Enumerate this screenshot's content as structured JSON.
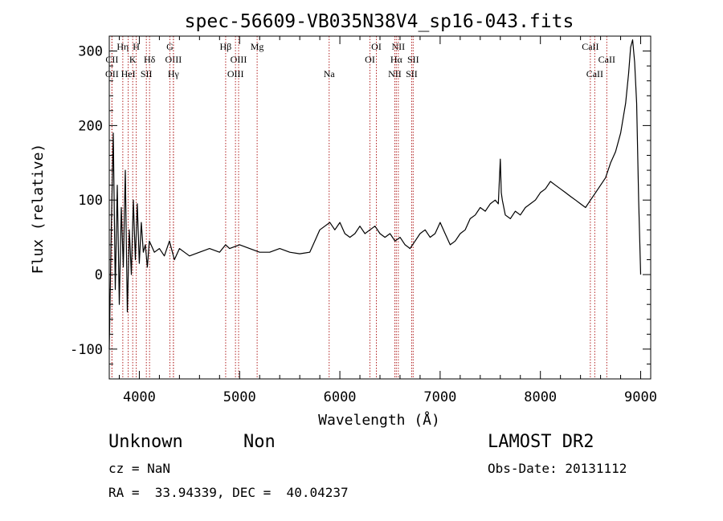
{
  "chart_data": {
    "type": "line",
    "title": "spec-56609-VB035N38V4_sp16-043.fits",
    "xlabel": "Wavelength (Å)",
    "ylabel": "Flux (relative)",
    "xlim": [
      3700,
      9100
    ],
    "ylim": [
      -140,
      320
    ],
    "x_ticks": [
      4000,
      5000,
      6000,
      7000,
      8000,
      9000
    ],
    "y_ticks": [
      -100,
      0,
      100,
      200,
      300
    ],
    "grid": false,
    "series": [
      {
        "x": [
          3700,
          3720,
          3740,
          3760,
          3780,
          3800,
          3820,
          3840,
          3860,
          3880,
          3900,
          3920,
          3940,
          3960,
          3980,
          4000,
          4020,
          4040,
          4060,
          4080,
          4100,
          4150,
          4200,
          4250,
          4300,
          4350,
          4400,
          4450,
          4500,
          4600,
          4700,
          4800,
          4860,
          4900,
          5000,
          5100,
          5200,
          5300,
          5400,
          5500,
          5600,
          5700,
          5750,
          5800,
          5850,
          5900,
          5950,
          6000,
          6050,
          6100,
          6150,
          6200,
          6250,
          6300,
          6350,
          6400,
          6450,
          6500,
          6550,
          6600,
          6650,
          6700,
          6750,
          6800,
          6850,
          6900,
          6950,
          7000,
          7050,
          7100,
          7150,
          7200,
          7250,
          7300,
          7350,
          7400,
          7450,
          7500,
          7550,
          7580,
          7600,
          7610,
          7620,
          7650,
          7700,
          7750,
          7800,
          7850,
          7900,
          7950,
          8000,
          8050,
          8100,
          8150,
          8200,
          8250,
          8300,
          8350,
          8400,
          8450,
          8500,
          8550,
          8600,
          8650,
          8700,
          8750,
          8800,
          8850,
          8880,
          8900,
          8920,
          8940,
          8960,
          8980,
          9000
        ],
        "y": [
          -100,
          60,
          190,
          -20,
          120,
          -40,
          90,
          10,
          140,
          -50,
          60,
          0,
          100,
          20,
          95,
          15,
          70,
          30,
          40,
          10,
          45,
          30,
          35,
          25,
          45,
          20,
          35,
          30,
          25,
          30,
          35,
          30,
          40,
          35,
          40,
          35,
          30,
          30,
          35,
          30,
          28,
          30,
          45,
          60,
          65,
          70,
          60,
          70,
          55,
          50,
          55,
          65,
          55,
          60,
          65,
          55,
          50,
          55,
          45,
          50,
          40,
          35,
          45,
          55,
          60,
          50,
          55,
          70,
          55,
          40,
          45,
          55,
          60,
          75,
          80,
          90,
          85,
          95,
          100,
          95,
          155,
          110,
          100,
          80,
          75,
          85,
          80,
          90,
          95,
          100,
          110,
          115,
          125,
          120,
          115,
          110,
          105,
          100,
          95,
          90,
          100,
          110,
          120,
          130,
          150,
          165,
          190,
          230,
          270,
          305,
          315,
          285,
          230,
          100,
          0
        ]
      }
    ],
    "emission_lines": [
      {
        "label": "CII",
        "x": 3727,
        "row": 2
      },
      {
        "label": "OII",
        "x": 3727,
        "row": 3
      },
      {
        "label": "Hη",
        "x": 3835,
        "row": 1
      },
      {
        "label": "HeI",
        "x": 3889,
        "row": 3
      },
      {
        "label": "K",
        "x": 3934,
        "row": 2
      },
      {
        "label": "H",
        "x": 3969,
        "row": 1
      },
      {
        "label": "SII",
        "x": 4070,
        "row": 3
      },
      {
        "label": "Hδ",
        "x": 4102,
        "row": 2
      },
      {
        "label": "G",
        "x": 4305,
        "row": 1
      },
      {
        "label": "OIII",
        "x": 4340,
        "row": 2
      },
      {
        "label": "Hγ",
        "x": 4340,
        "row": 3
      },
      {
        "label": "Hβ",
        "x": 4861,
        "row": 1
      },
      {
        "label": "OIII",
        "x": 4990,
        "row": 2
      },
      {
        "label": "OIII",
        "x": 4959,
        "row": 3
      },
      {
        "label": "Mg",
        "x": 5175,
        "row": 1
      },
      {
        "label": "Na",
        "x": 5893,
        "row": 3
      },
      {
        "label": "OI",
        "x": 6364,
        "row": 1
      },
      {
        "label": "OI",
        "x": 6300,
        "row": 2
      },
      {
        "label": "NII",
        "x": 6583,
        "row": 1
      },
      {
        "label": "Hα",
        "x": 6563,
        "row": 2
      },
      {
        "label": "SII",
        "x": 6731,
        "row": 2
      },
      {
        "label": "NII",
        "x": 6548,
        "row": 3
      },
      {
        "label": "SII",
        "x": 6716,
        "row": 3
      },
      {
        "label": "CaII",
        "x": 8498,
        "row": 1
      },
      {
        "label": "CaII",
        "x": 8662,
        "row": 2
      },
      {
        "label": "CaII",
        "x": 8542,
        "row": 3
      }
    ]
  },
  "info": {
    "class": "Unknown",
    "subclass": "Non",
    "survey": "LAMOST DR2",
    "cz": "cz = NaN",
    "obs_date": "Obs-Date: 20131112",
    "radec": "RA =  33.94339, DEC =  40.04237"
  }
}
